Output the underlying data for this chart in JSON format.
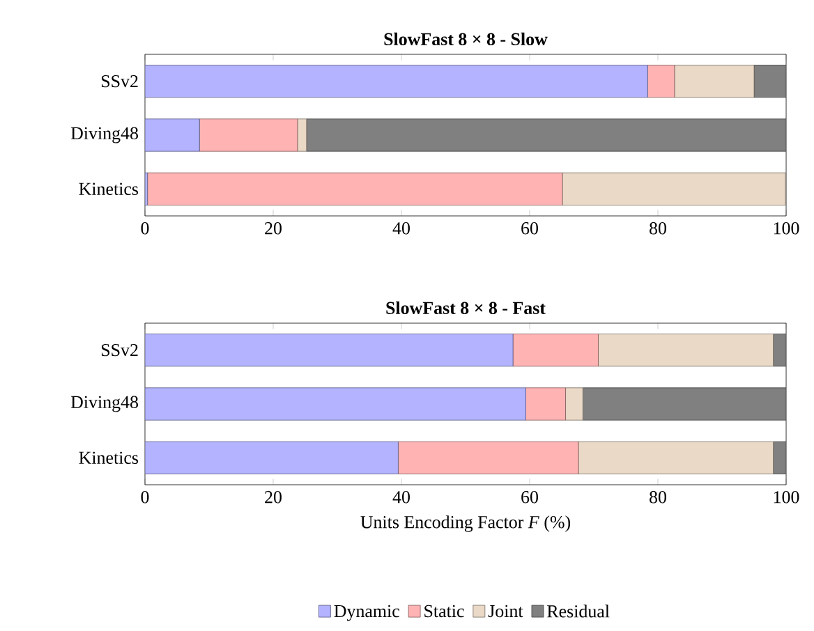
{
  "chart_data": [
    {
      "type": "bar",
      "orientation": "horizontal",
      "stacked": true,
      "title": "SlowFast 8 × 8 - Slow",
      "categories": [
        "SSv2",
        "Diving48",
        "Kinetics"
      ],
      "series": [
        {
          "color": "#b3b3ff",
          "values": [
            78.4,
            8.5,
            0.4
          ]
        },
        {
          "color": "#ffb3b3",
          "values": [
            4.2,
            15.3,
            64.7
          ]
        },
        {
          "color": "#ead9c6",
          "values": [
            12.4,
            1.4,
            34.8
          ]
        },
        {
          "color": "#808080",
          "values": [
            5.0,
            74.8,
            null
          ]
        }
      ],
      "xlim": [
        0,
        100
      ],
      "xticks": [
        0,
        20,
        40,
        60,
        80,
        100
      ]
    },
    {
      "type": "bar",
      "orientation": "horizontal",
      "stacked": true,
      "title": "SlowFast 8 × 8 - Fast",
      "xlabel": "Units Encoding Factor *F* (%)",
      "categories": [
        "SSv2",
        "Diving48",
        "Kinetics"
      ],
      "series": [
        {
          "name": "Dynamic",
          "color": "#b3b3ff",
          "values": [
            57.4,
            59.4,
            39.5
          ]
        },
        {
          "name": "Static",
          "color": "#ffb3b3",
          "values": [
            13.3,
            6.2,
            28.1
          ]
        },
        {
          "name": "Joint",
          "color": "#ead9c6",
          "values": [
            27.3,
            2.7,
            30.4
          ]
        },
        {
          "name": "Residual",
          "color": "#808080",
          "values": [
            2.0,
            31.7,
            2.0
          ]
        }
      ],
      "xlim": [
        0,
        100
      ],
      "xticks": [
        0,
        20,
        40,
        60,
        80,
        100
      ],
      "legend": "bottom"
    }
  ]
}
